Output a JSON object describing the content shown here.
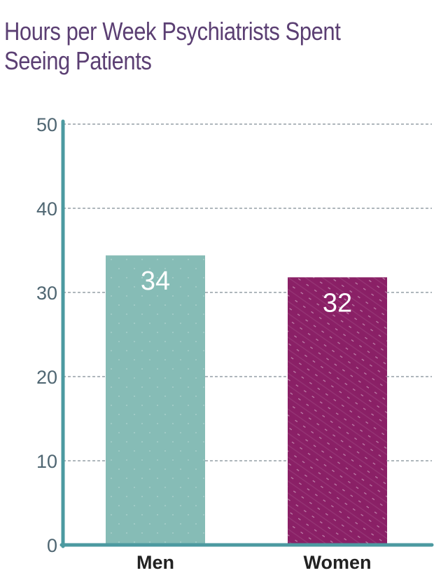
{
  "chart_data": {
    "type": "bar",
    "title": "Hours per Week Psychiatrists Spent Seeing Patients",
    "xlabel": "",
    "ylabel": "",
    "categories": [
      "Men",
      "Women"
    ],
    "values": [
      34.4,
      31.8
    ],
    "data_labels": [
      "34",
      "32"
    ],
    "ylim": [
      0,
      50
    ],
    "yticks": [
      0,
      10,
      20,
      30,
      40,
      50
    ],
    "grid": true,
    "legend": "none",
    "bar_colors": [
      "#86bcb6",
      "#8a2066"
    ],
    "colors": {
      "title": "#5b3f73",
      "axis": "#4c9aa0",
      "grid": "#5f6f78",
      "tick_text": "#4f6672",
      "category_text": "#222222",
      "value_text": "#ffffff"
    }
  }
}
